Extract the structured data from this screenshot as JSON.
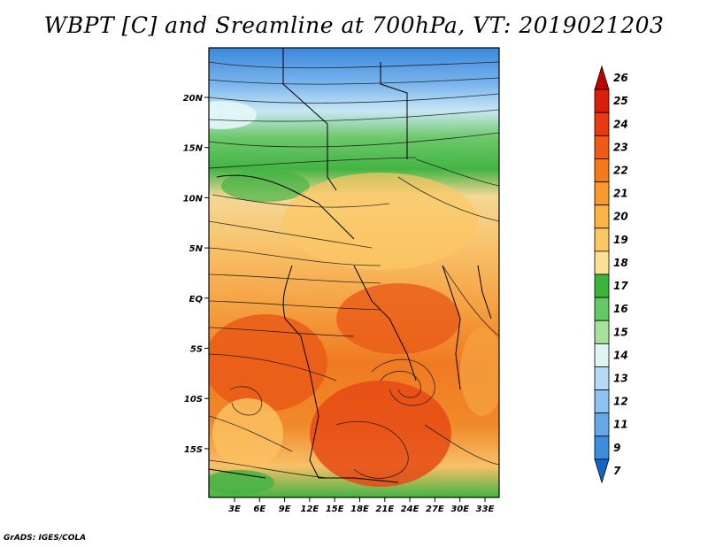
{
  "title": "WBPT [C] and Sreamline at 700hPa, VT: 2019021203",
  "credit": "GrADS: IGES/COLA",
  "map": {
    "lat_ticks": [
      "20N",
      "15N",
      "10N",
      "5N",
      "EQ",
      "5S",
      "10S",
      "15S"
    ],
    "lon_ticks": [
      "3E",
      "6E",
      "9E",
      "12E",
      "15E",
      "18E",
      "21E",
      "24E",
      "27E",
      "30E",
      "33E"
    ]
  },
  "colorbar": {
    "labels": [
      "26",
      "25",
      "24",
      "23",
      "22",
      "21",
      "20",
      "19",
      "18",
      "17",
      "16",
      "15",
      "14",
      "13",
      "12",
      "11",
      "9",
      "7"
    ],
    "colors": [
      "#c00000",
      "#dc1e0a",
      "#ea3a10",
      "#f05a14",
      "#f57a18",
      "#fa9a28",
      "#fcb446",
      "#fcc864",
      "#fce096",
      "#3cb43c",
      "#64c864",
      "#a8e0a0",
      "#e0f4f4",
      "#b4daf8",
      "#8cc4f0",
      "#64a8e8",
      "#3c8ce0",
      "#1464c8"
    ]
  }
}
